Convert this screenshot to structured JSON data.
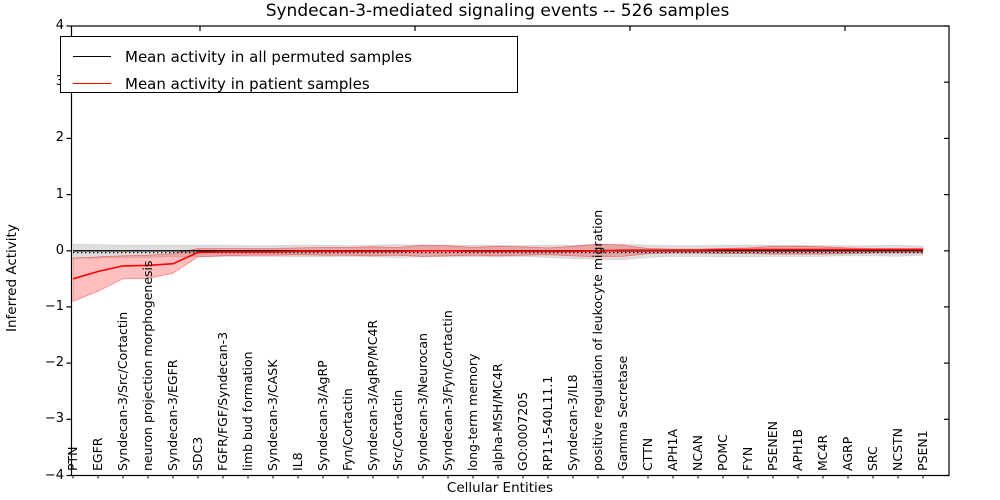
{
  "title": "Syndecan-3-mediated signaling events -- 526 samples",
  "legend": {
    "position": "upper left",
    "items": [
      {
        "label": "Mean activity in all permuted samples",
        "color": "#000000"
      },
      {
        "label": "Mean activity in patient samples",
        "color": "#ff0000"
      }
    ]
  },
  "axes": {
    "y_label": "Inferred Activity",
    "x_label": "Cellular Entities",
    "y_tick_labels": [
      "4",
      "3",
      "2",
      "1",
      "0",
      "−1",
      "−2",
      "−3",
      "−4"
    ],
    "y_tick_values": [
      4,
      3,
      2,
      1,
      0,
      -1,
      -2,
      -3,
      -4
    ],
    "ylim": [
      -4,
      4
    ]
  },
  "chart_data": {
    "type": "line",
    "title": "Syndecan-3-mediated signaling events -- 526 samples",
    "xlabel": "Cellular Entities",
    "ylabel": "Inferred Activity",
    "ylim": [
      -4,
      4
    ],
    "grid": false,
    "legend_position": "upper left",
    "x_tick_rotation": 90,
    "categories": [
      "PTN",
      "EGFR",
      "Syndecan-3/Src/Cortactin",
      "neuron projection morphogenesis",
      "Syndecan-3/EGFR",
      "SDC3",
      "FGFR/FGF/Syndecan-3",
      "limb bud formation",
      "Syndecan-3/CASK",
      "IL8",
      "Syndecan-3/AgRP",
      "Fyn/Cortactin",
      "Syndecan-3/AgRP/MC4R",
      "Src/Cortactin",
      "Syndecan-3/Neurocan",
      "Syndecan-3/Fyn/Cortactin",
      "long-term memory",
      "alpha-MSH/MC4R",
      "GO:0007205",
      "RP11-540L11.1",
      "Syndecan-3/IL8",
      "positive regulation of leukocyte migration",
      "Gamma Secretase",
      "CTTN",
      "APH1A",
      "NCAN",
      "POMC",
      "FYN",
      "PSENEN",
      "APH1B",
      "MC4R",
      "AGRP",
      "SRC",
      "NCSTN",
      "PSEN1"
    ],
    "series": [
      {
        "name": "Mean activity in all permuted samples",
        "color": "#000000",
        "values": [
          0,
          0,
          0,
          0,
          0,
          0,
          0,
          0,
          0,
          0,
          0,
          0,
          0,
          0,
          0,
          0,
          0,
          0,
          0,
          0,
          0,
          0,
          0,
          0,
          0,
          0,
          0,
          0,
          0,
          0,
          0,
          0,
          0,
          0,
          0
        ]
      },
      {
        "name": "Mean activity in patient samples",
        "color": "#ff0000",
        "values": [
          -0.5,
          -0.37,
          -0.27,
          -0.26,
          -0.23,
          -0.03,
          -0.02,
          -0.02,
          -0.02,
          -0.01,
          -0.01,
          -0.01,
          -0.01,
          -0.01,
          0.0,
          0.0,
          -0.01,
          -0.01,
          -0.01,
          -0.01,
          -0.01,
          0.0,
          0.01,
          0.01,
          0.01,
          0.01,
          0.02,
          0.02,
          0.02,
          0.02,
          0.02,
          0.02,
          0.02,
          0.02,
          0.02
        ]
      }
    ],
    "bands": [
      {
        "name": "permuted samples range",
        "fill": "rgba(0,0,0,0.13)",
        "edge": "rgba(0,0,0,0.10)",
        "upper": [
          0.12,
          0.11,
          0.1,
          0.1,
          0.1,
          0.1,
          0.1,
          0.09,
          0.09,
          0.1,
          0.1,
          0.09,
          0.1,
          0.11,
          0.1,
          0.1,
          0.1,
          0.1,
          0.09,
          0.1,
          0.1,
          0.11,
          0.12,
          0.1,
          0.09,
          0.09,
          0.1,
          0.1,
          0.1,
          0.1,
          0.09,
          0.09,
          0.09,
          0.1,
          0.08
        ],
        "lower": [
          -0.14,
          -0.13,
          -0.12,
          -0.12,
          -0.11,
          -0.11,
          -0.1,
          -0.1,
          -0.1,
          -0.11,
          -0.11,
          -0.1,
          -0.11,
          -0.12,
          -0.11,
          -0.11,
          -0.11,
          -0.11,
          -0.1,
          -0.12,
          -0.14,
          -0.15,
          -0.16,
          -0.12,
          -0.1,
          -0.1,
          -0.11,
          -0.11,
          -0.1,
          -0.1,
          -0.1,
          -0.09,
          -0.09,
          -0.1,
          -0.08
        ]
      },
      {
        "name": "patient samples range",
        "fill": "rgba(255,0,0,0.25)",
        "edge": "rgba(255,0,0,0.40)",
        "upper": [
          -0.13,
          -0.11,
          -0.09,
          -0.08,
          -0.05,
          0.04,
          0.04,
          0.04,
          0.04,
          0.05,
          0.06,
          0.06,
          0.07,
          0.06,
          0.1,
          0.09,
          0.06,
          0.08,
          0.07,
          0.05,
          0.08,
          0.12,
          0.1,
          0.04,
          0.03,
          0.03,
          0.04,
          0.05,
          0.08,
          0.08,
          0.07,
          0.05,
          0.04,
          0.04,
          0.04
        ],
        "lower": [
          -0.9,
          -0.72,
          -0.5,
          -0.49,
          -0.4,
          -0.11,
          -0.09,
          -0.08,
          -0.08,
          -0.07,
          -0.08,
          -0.08,
          -0.09,
          -0.08,
          -0.1,
          -0.09,
          -0.08,
          -0.09,
          -0.08,
          -0.07,
          -0.09,
          -0.11,
          -0.1,
          -0.05,
          -0.04,
          -0.04,
          -0.05,
          -0.05,
          -0.06,
          -0.06,
          -0.06,
          -0.05,
          -0.04,
          -0.04,
          -0.04
        ]
      }
    ],
    "baseline_dotted": -0.035
  }
}
